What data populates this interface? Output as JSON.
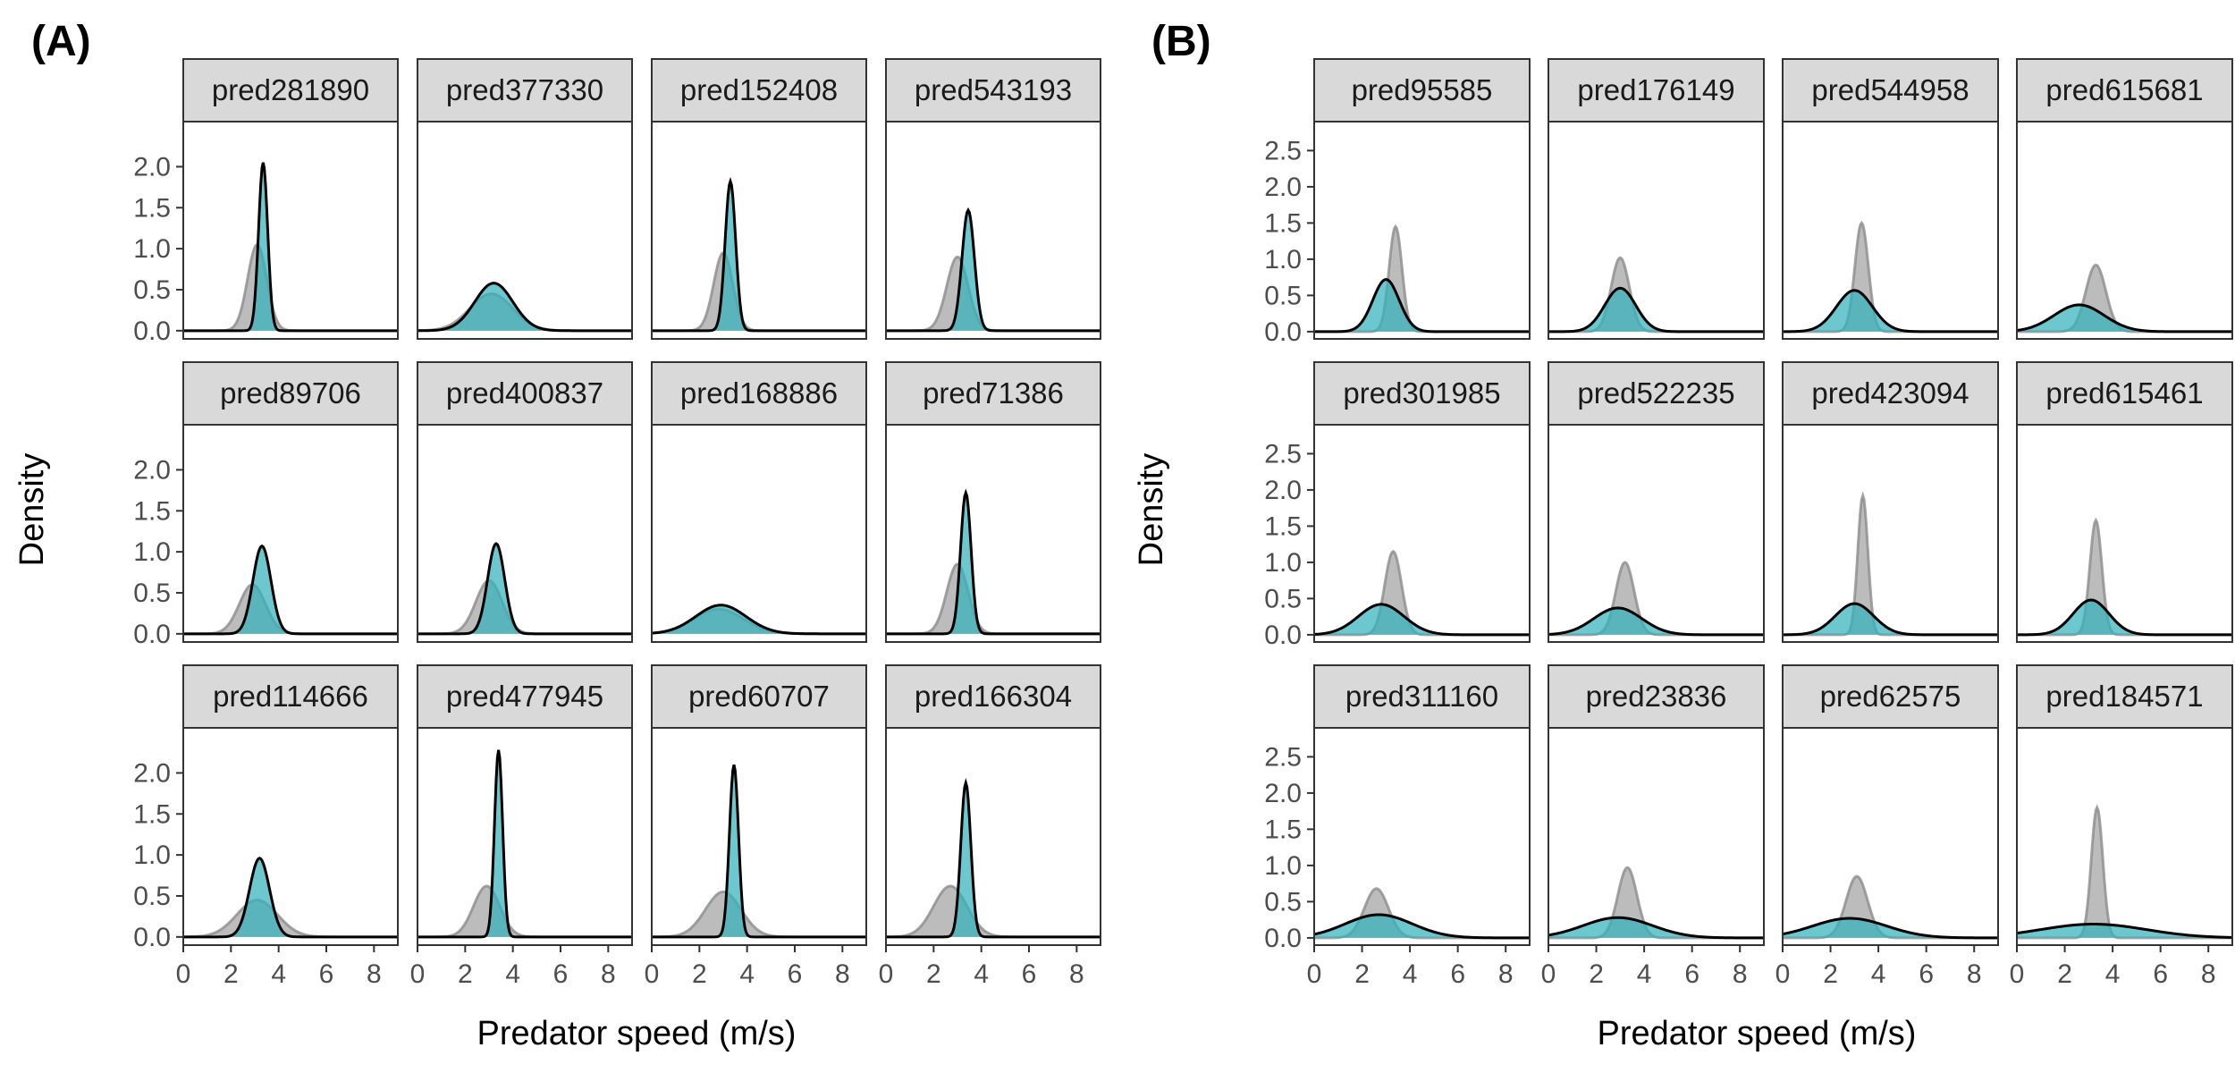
{
  "figure": {
    "colors": {
      "reference_fill": "#a6a6a6",
      "reference_line": "#8c8c8c",
      "predicted_fill": "#35b1bd",
      "predicted_line": "#000000",
      "strip_bg": "#d9d9d9",
      "axis": "#333333",
      "tick_text": "#4d4d4d"
    }
  },
  "chart_data": [
    {
      "type": "area",
      "panel_label": "(A)",
      "xlabel": "Predator speed (m/s)",
      "ylabel": "Density",
      "xlim": [
        0,
        9
      ],
      "ylim": [
        -0.1,
        2.55
      ],
      "xticks": [
        0,
        2,
        4,
        6,
        8
      ],
      "yticks": [
        0.0,
        0.5,
        1.0,
        1.5,
        2.0
      ],
      "ytick_labels": [
        "0.0",
        "0.5",
        "1.0",
        "1.5",
        "2.0"
      ],
      "grid": false,
      "facets": [
        {
          "label": "pred281890",
          "ref": {
            "mu": 3.1,
            "sd": 0.4,
            "peak": 1.05
          },
          "pred": {
            "mu": 3.35,
            "sd": 0.19,
            "peak": 2.05
          }
        },
        {
          "label": "pred377330",
          "ref": {
            "mu": 3.1,
            "sd": 0.9,
            "peak": 0.45
          },
          "pred": {
            "mu": 3.2,
            "sd": 0.8,
            "peak": 0.58
          }
        },
        {
          "label": "pred152408",
          "ref": {
            "mu": 3.0,
            "sd": 0.4,
            "peak": 0.95
          },
          "pred": {
            "mu": 3.3,
            "sd": 0.22,
            "peak": 1.82
          }
        },
        {
          "label": "pred543193",
          "ref": {
            "mu": 3.0,
            "sd": 0.45,
            "peak": 0.9
          },
          "pred": {
            "mu": 3.45,
            "sd": 0.26,
            "peak": 1.47
          }
        },
        {
          "label": "pred89706",
          "ref": {
            "mu": 2.9,
            "sd": 0.55,
            "peak": 0.6
          },
          "pred": {
            "mu": 3.3,
            "sd": 0.38,
            "peak": 1.07
          }
        },
        {
          "label": "pred400837",
          "ref": {
            "mu": 3.0,
            "sd": 0.55,
            "peak": 0.65
          },
          "pred": {
            "mu": 3.3,
            "sd": 0.36,
            "peak": 1.1
          }
        },
        {
          "label": "pred168886",
          "ref": {
            "mu": 2.8,
            "sd": 1.05,
            "peak": 0.3
          },
          "pred": {
            "mu": 2.9,
            "sd": 1.05,
            "peak": 0.35
          }
        },
        {
          "label": "pred71386",
          "ref": {
            "mu": 3.0,
            "sd": 0.45,
            "peak": 0.85
          },
          "pred": {
            "mu": 3.35,
            "sd": 0.22,
            "peak": 1.72
          }
        },
        {
          "label": "pred114666",
          "ref": {
            "mu": 3.1,
            "sd": 0.85,
            "peak": 0.45
          },
          "pred": {
            "mu": 3.2,
            "sd": 0.42,
            "peak": 0.96
          }
        },
        {
          "label": "pred477945",
          "ref": {
            "mu": 2.9,
            "sd": 0.55,
            "peak": 0.62
          },
          "pred": {
            "mu": 3.4,
            "sd": 0.17,
            "peak": 2.28
          }
        },
        {
          "label": "pred60707",
          "ref": {
            "mu": 3.0,
            "sd": 0.75,
            "peak": 0.55
          },
          "pred": {
            "mu": 3.45,
            "sd": 0.19,
            "peak": 2.1
          }
        },
        {
          "label": "pred166304",
          "ref": {
            "mu": 2.7,
            "sd": 0.7,
            "peak": 0.62
          },
          "pred": {
            "mu": 3.35,
            "sd": 0.21,
            "peak": 1.88
          }
        }
      ]
    },
    {
      "type": "area",
      "panel_label": "(B)",
      "xlabel": "Predator speed (m/s)",
      "ylabel": "Density",
      "xlim": [
        0,
        9
      ],
      "ylim": [
        -0.1,
        2.9
      ],
      "xticks": [
        0,
        2,
        4,
        6,
        8
      ],
      "yticks": [
        0.0,
        0.5,
        1.0,
        1.5,
        2.0,
        2.5
      ],
      "ytick_labels": [
        "0.0",
        "0.5",
        "1.0",
        "1.5",
        "2.0",
        "2.5"
      ],
      "grid": false,
      "facets": [
        {
          "label": "pred95585",
          "ref": {
            "mu": 3.4,
            "sd": 0.27,
            "peak": 1.45
          },
          "pred": {
            "mu": 3.0,
            "sd": 0.55,
            "peak": 0.72
          }
        },
        {
          "label": "pred176149",
          "ref": {
            "mu": 3.0,
            "sd": 0.38,
            "peak": 1.02
          },
          "pred": {
            "mu": 3.0,
            "sd": 0.65,
            "peak": 0.6
          }
        },
        {
          "label": "pred544958",
          "ref": {
            "mu": 3.3,
            "sd": 0.28,
            "peak": 1.5
          },
          "pred": {
            "mu": 3.0,
            "sd": 0.75,
            "peak": 0.57
          }
        },
        {
          "label": "pred615681",
          "ref": {
            "mu": 3.3,
            "sd": 0.42,
            "peak": 0.92
          },
          "pred": {
            "mu": 2.6,
            "sd": 1.05,
            "peak": 0.37
          }
        },
        {
          "label": "pred301985",
          "ref": {
            "mu": 3.3,
            "sd": 0.35,
            "peak": 1.15
          },
          "pred": {
            "mu": 2.8,
            "sd": 0.95,
            "peak": 0.42
          }
        },
        {
          "label": "pred522235",
          "ref": {
            "mu": 3.2,
            "sd": 0.38,
            "peak": 1.0
          },
          "pred": {
            "mu": 2.9,
            "sd": 1.0,
            "peak": 0.37
          }
        },
        {
          "label": "pred423094",
          "ref": {
            "mu": 3.35,
            "sd": 0.21,
            "peak": 1.92
          },
          "pred": {
            "mu": 3.0,
            "sd": 0.8,
            "peak": 0.43
          }
        },
        {
          "label": "pred615461",
          "ref": {
            "mu": 3.3,
            "sd": 0.25,
            "peak": 1.58
          },
          "pred": {
            "mu": 3.1,
            "sd": 0.75,
            "peak": 0.48
          }
        },
        {
          "label": "pred311160",
          "ref": {
            "mu": 2.6,
            "sd": 0.5,
            "peak": 0.68
          },
          "pred": {
            "mu": 2.7,
            "sd": 1.4,
            "peak": 0.32
          }
        },
        {
          "label": "pred23836",
          "ref": {
            "mu": 3.3,
            "sd": 0.4,
            "peak": 0.97
          },
          "pred": {
            "mu": 2.9,
            "sd": 1.45,
            "peak": 0.28
          }
        },
        {
          "label": "pred62575",
          "ref": {
            "mu": 3.1,
            "sd": 0.45,
            "peak": 0.85
          },
          "pred": {
            "mu": 2.8,
            "sd": 1.55,
            "peak": 0.27
          }
        },
        {
          "label": "pred184571",
          "ref": {
            "mu": 3.35,
            "sd": 0.24,
            "peak": 1.8
          },
          "pred": {
            "mu": 3.2,
            "sd": 2.2,
            "peak": 0.19
          }
        }
      ]
    }
  ]
}
